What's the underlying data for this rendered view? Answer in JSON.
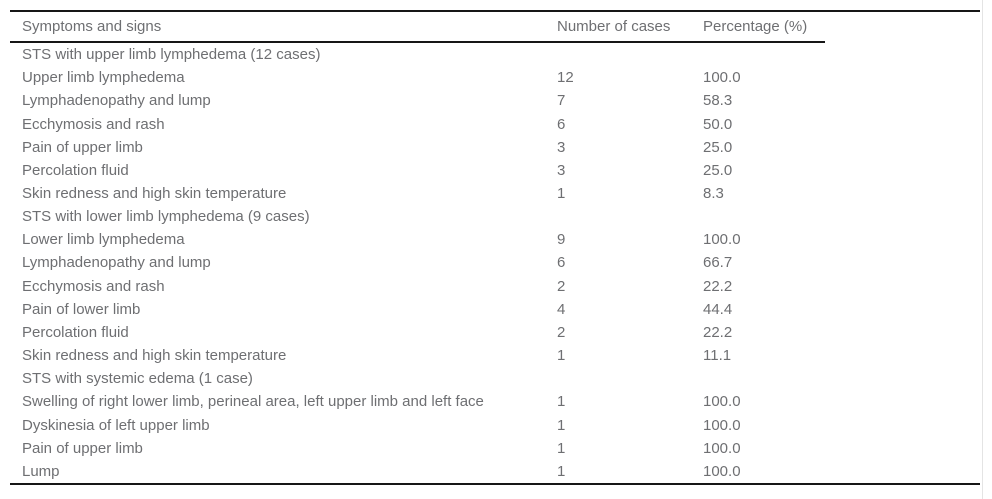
{
  "page": {
    "background": "#ffffff",
    "rule_color": "#161616",
    "text_color": "#6e6f72"
  },
  "table": {
    "columns": [
      {
        "key": "label",
        "label": "Symptoms and signs"
      },
      {
        "key": "cases",
        "label": "Number of cases"
      },
      {
        "key": "pct",
        "label": "Percentage (%)"
      }
    ],
    "rows": [
      {
        "label": "STS with upper limb lymphedema (12 cases)",
        "cases": "",
        "pct": ""
      },
      {
        "label": "Upper limb lymphedema",
        "cases": "12",
        "pct": "100.0"
      },
      {
        "label": "Lymphadenopathy and lump",
        "cases": "7",
        "pct": "58.3"
      },
      {
        "label": "Ecchymosis and rash",
        "cases": "6",
        "pct": "50.0"
      },
      {
        "label": "Pain of upper limb",
        "cases": "3",
        "pct": "25.0"
      },
      {
        "label": "Percolation fluid",
        "cases": "3",
        "pct": "25.0"
      },
      {
        "label": "Skin redness and high skin temperature",
        "cases": "1",
        "pct": "8.3"
      },
      {
        "label": "STS with lower limb lymphedema (9 cases)",
        "cases": "",
        "pct": ""
      },
      {
        "label": "Lower limb lymphedema",
        "cases": "9",
        "pct": "100.0"
      },
      {
        "label": "Lymphadenopathy and lump",
        "cases": "6",
        "pct": "66.7"
      },
      {
        "label": "Ecchymosis and rash",
        "cases": "2",
        "pct": "22.2"
      },
      {
        "label": "Pain of lower limb",
        "cases": "4",
        "pct": "44.4"
      },
      {
        "label": "Percolation fluid",
        "cases": "2",
        "pct": "22.2"
      },
      {
        "label": "Skin redness and high skin temperature",
        "cases": "1",
        "pct": "11.1"
      },
      {
        "label": "STS with systemic edema (1 case)",
        "cases": "",
        "pct": ""
      },
      {
        "label": "Swelling of right lower limb, perineal area, left upper limb and left face",
        "cases": "1",
        "pct": "100.0"
      },
      {
        "label": "Dyskinesia of left upper limb",
        "cases": "1",
        "pct": "100.0"
      },
      {
        "label": "Pain of upper limb",
        "cases": "1",
        "pct": "100.0"
      },
      {
        "label": "Lump",
        "cases": "1",
        "pct": "100.0"
      }
    ]
  }
}
